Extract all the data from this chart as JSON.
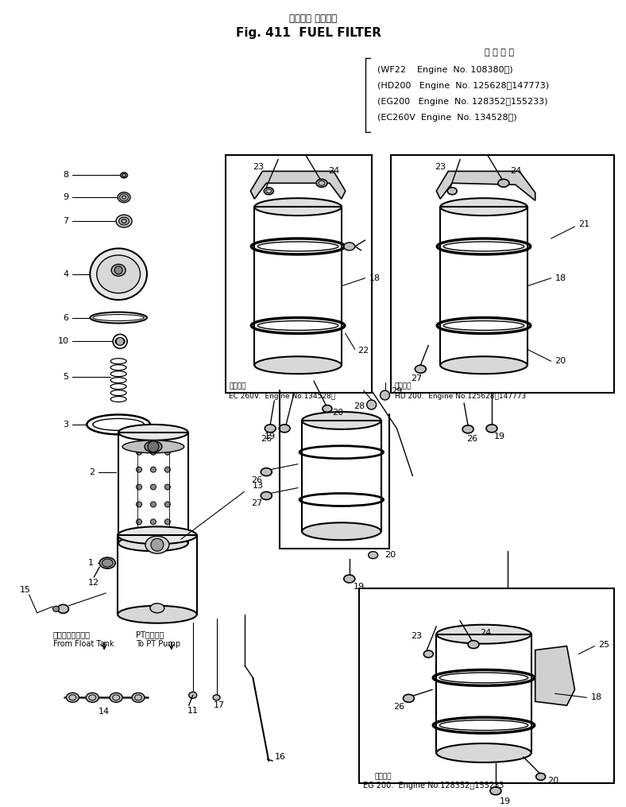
{
  "title_japanese": "フェエル フィルタ",
  "title_english": "Fig. 411  FUEL FILTER",
  "engine_label_japanese": "適 用 号 機",
  "engine_info_line1": "(WF22    Engine  No. 108380～)",
  "engine_info_line2": "(HD200   Engine  No. 125628～147773)",
  "engine_info_line3": "(EG200   Engine  No. 128352～155233)",
  "engine_info_line4": "(EC260V  Engine  No. 134528～)",
  "label_ec260": "EC 260V.  適用号機  Engine No.134528～",
  "label_hd200": "HD 200.  適用号機  Engine No.125628～147773",
  "label_eg200": "適用号機\nEG 200.  Engine No.128352～155233",
  "from_float_tank_ja": "フロータンクから",
  "from_float_tank_en": "From Float Tank",
  "to_pt_pump_ja": "PTポンプへ",
  "to_pt_pump_en": "To PT Pump",
  "bg_color": "#ffffff",
  "text_color": "#000000",
  "fig_width": 7.88,
  "fig_height": 10.15,
  "dpi": 100
}
